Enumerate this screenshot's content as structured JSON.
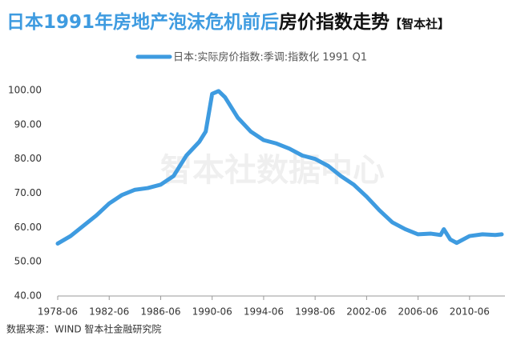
{
  "chart_data": {
    "type": "line",
    "title_parts": [
      "日本1991年房地产泡沫危机前后",
      "房价指数走势",
      "【智本社】"
    ],
    "watermark": "智本社数据中心",
    "source": "数据来源：WIND 智本社金融研究院",
    "x": [
      "1978-06",
      "1979-06",
      "1980-06",
      "1981-06",
      "1982-06",
      "1983-06",
      "1984-06",
      "1985-06",
      "1986-06",
      "1987-06",
      "1988-06",
      "1989-06",
      "1989-12",
      "1990-06",
      "1990-12",
      "1991-06",
      "1992-06",
      "1993-06",
      "1994-06",
      "1995-06",
      "1996-06",
      "1997-06",
      "1998-06",
      "1999-06",
      "2000-06",
      "2001-06",
      "2002-06",
      "2003-06",
      "2004-06",
      "2005-06",
      "2006-06",
      "2007-06",
      "2008-03",
      "2008-06",
      "2008-12",
      "2009-06",
      "2010-06",
      "2011-06",
      "2012-06",
      "2012-12"
    ],
    "series": [
      {
        "name": "日本:实际房价指数:季调:指数化 1991 Q1",
        "color": "#3e9be0",
        "values": [
          55.3,
          57.5,
          60.5,
          63.5,
          67,
          69.5,
          71,
          71.5,
          72.5,
          75,
          81,
          85,
          88,
          99,
          99.8,
          98,
          92,
          88,
          85.5,
          84.5,
          83,
          81,
          80,
          78,
          75,
          72.5,
          69,
          65,
          61.5,
          59.5,
          58,
          58.2,
          57.8,
          59.5,
          56.5,
          55.5,
          57.5,
          58,
          57.8,
          58
        ]
      }
    ],
    "xlim": [
      "1978-06",
      "2013-03"
    ],
    "xticks": [
      "1978-06",
      "1982-06",
      "1986-06",
      "1990-06",
      "1994-06",
      "1998-06",
      "2002-06",
      "2006-06",
      "2010-06"
    ],
    "ylim": [
      40,
      100
    ],
    "yticks": [
      {
        "value": 40,
        "label": "40.00"
      },
      {
        "value": 50,
        "label": "50.00"
      },
      {
        "value": 60,
        "label": "60.00"
      },
      {
        "value": 70,
        "label": "70.00"
      },
      {
        "value": 80,
        "label": "80.00"
      },
      {
        "value": 90,
        "label": "90.00"
      },
      {
        "value": 100,
        "label": "100.00"
      }
    ],
    "grid": false
  }
}
